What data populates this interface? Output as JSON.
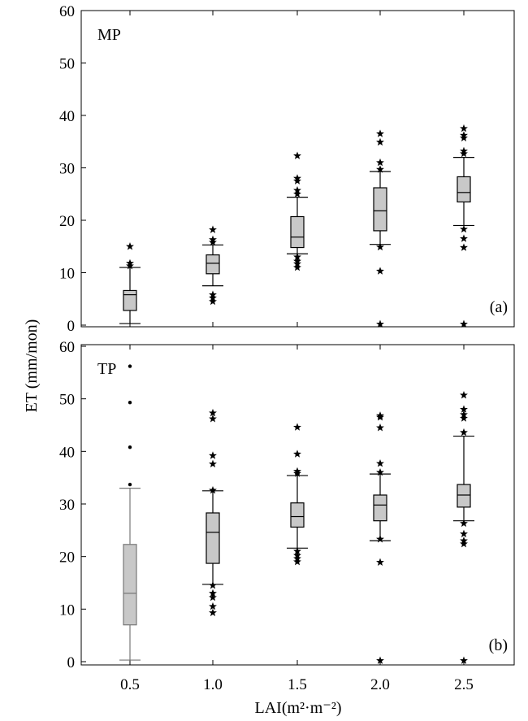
{
  "chart_data": {
    "type": "box",
    "categories": [
      "0.5",
      "1.0",
      "1.5",
      "2.0",
      "2.5"
    ],
    "xlabel": "LAI(m²·m⁻²)",
    "ylabel": "ET (mm/mon)",
    "panels": [
      {
        "name": "MP",
        "tag": "(a)",
        "ylim": [
          0,
          60
        ],
        "yticks": [
          "0",
          "10",
          "20",
          "30",
          "40",
          "50",
          "60"
        ],
        "boxes": [
          {
            "category": "0.5",
            "whisker_low": 0.3,
            "q1": 2.8,
            "median": 5.8,
            "q3": 6.6,
            "whisker_high": 11.0,
            "outliers": [
              11.3,
              11.8,
              15.0
            ]
          },
          {
            "category": "1.0",
            "whisker_low": 7.5,
            "q1": 9.8,
            "median": 11.8,
            "q3": 13.4,
            "whisker_high": 15.3,
            "outliers": [
              4.5,
              5.2,
              5.8,
              15.8,
              16.3,
              18.2
            ]
          },
          {
            "category": "1.5",
            "whisker_low": 13.6,
            "q1": 14.8,
            "median": 16.8,
            "q3": 20.7,
            "whisker_high": 24.4,
            "outliers": [
              11.0,
              11.7,
              12.2,
              13.0,
              25.0,
              25.7,
              27.5,
              28.0,
              32.3
            ]
          },
          {
            "category": "2.0",
            "whisker_low": 15.4,
            "q1": 18.0,
            "median": 21.8,
            "q3": 26.2,
            "whisker_high": 29.3,
            "outliers": [
              0.2,
              10.3,
              14.9,
              29.7,
              31.0,
              34.9,
              36.5
            ]
          },
          {
            "category": "2.5",
            "whisker_low": 19.0,
            "q1": 23.5,
            "median": 25.3,
            "q3": 28.3,
            "whisker_high": 32.0,
            "outliers": [
              0.2,
              14.8,
              16.5,
              18.3,
              32.7,
              33.2,
              35.7,
              36.2,
              37.5
            ]
          }
        ]
      },
      {
        "name": "TP",
        "tag": "(b)",
        "ylim": [
          0,
          60
        ],
        "yticks": [
          "0",
          "10",
          "20",
          "30",
          "40",
          "50",
          "60"
        ],
        "boxes": [
          {
            "category": "0.5",
            "whisker_low": 0.3,
            "q1": 7.0,
            "median": 13.0,
            "q3": 22.3,
            "whisker_high": 33.0,
            "outliers": [
              33.7,
              40.8,
              49.3,
              56.2
            ]
          },
          {
            "category": "1.0",
            "whisker_low": 14.7,
            "q1": 18.7,
            "median": 24.6,
            "q3": 28.3,
            "whisker_high": 32.5,
            "outliers": [
              9.3,
              10.5,
              12.2,
              13.0,
              14.5,
              32.6,
              37.6,
              39.2,
              46.2,
              47.3
            ]
          },
          {
            "category": "1.5",
            "whisker_low": 21.6,
            "q1": 25.6,
            "median": 27.6,
            "q3": 30.2,
            "whisker_high": 35.4,
            "outliers": [
              19.0,
              19.6,
              20.2,
              21.0,
              35.8,
              36.2,
              39.5,
              44.6
            ]
          },
          {
            "category": "2.0",
            "whisker_low": 23.0,
            "q1": 26.8,
            "median": 29.8,
            "q3": 31.7,
            "whisker_high": 35.7,
            "outliers": [
              0.2,
              18.9,
              23.3,
              36.0,
              37.7,
              44.5,
              46.5,
              46.8
            ]
          },
          {
            "category": "2.5",
            "whisker_low": 26.8,
            "q1": 29.4,
            "median": 31.7,
            "q3": 33.7,
            "whisker_high": 42.9,
            "outliers": [
              0.2,
              22.4,
              23.0,
              24.3,
              26.3,
              43.6,
              46.3,
              47.0,
              48.0,
              50.7
            ]
          }
        ]
      }
    ],
    "box_fill": "#c8c8c8",
    "outlier_marker": "star"
  }
}
